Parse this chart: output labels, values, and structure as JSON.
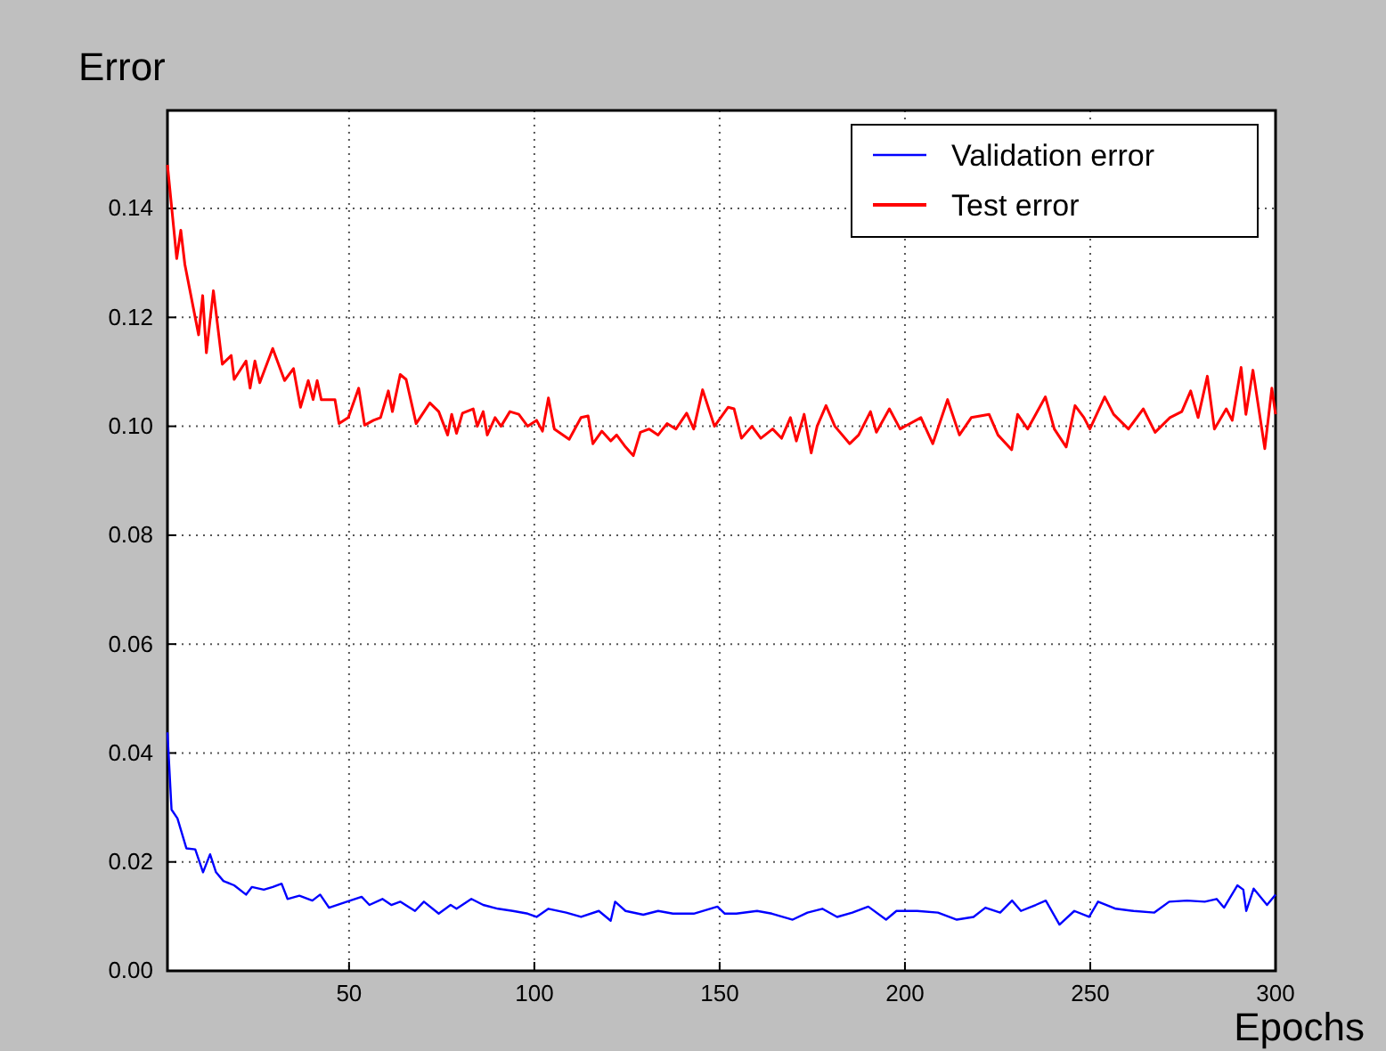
{
  "chart_data": {
    "type": "line",
    "xlabel": "Epochs",
    "ylabel": "Error",
    "xlim": [
      1,
      300
    ],
    "xticks": [
      50,
      100,
      150,
      200,
      250,
      300
    ],
    "ylim": [
      0,
      0.158
    ],
    "yticks": [
      {
        "value": 0,
        "label": "0.00"
      },
      {
        "value": 0.02,
        "label": "0.02"
      },
      {
        "value": 0.04,
        "label": "0.04"
      },
      {
        "value": 0.06,
        "label": "0.06"
      },
      {
        "value": 0.08,
        "label": "0.08"
      },
      {
        "value": 0.1,
        "label": "0.10"
      },
      {
        "value": 0.12,
        "label": "0.12"
      },
      {
        "value": 0.14,
        "label": "0.14"
      }
    ],
    "grid": true,
    "legend": "top right",
    "line_style": "solid",
    "marker": "none",
    "series": [
      {
        "name": "Validation error",
        "color": "#0000ff",
        "x": [
          1,
          2.1,
          3.7,
          6.1,
          8.5,
          10.6,
          12.5,
          14.1,
          16.1,
          19,
          22.2,
          23.8,
          27,
          29.4,
          31.8,
          33.4,
          36.6,
          40.1,
          42.2,
          44.6,
          49.4,
          53.4,
          55.5,
          59,
          61.4,
          63.8,
          67.8,
          70.2,
          74.2,
          77.4,
          79,
          83,
          86.2,
          90.2,
          94.2,
          98.2,
          100.6,
          103.8,
          108.6,
          112.6,
          117.4,
          120.6,
          121.8,
          124.6,
          129.4,
          133.4,
          137.4,
          143,
          149.4,
          151.4,
          154.5,
          160.1,
          164.1,
          169.7,
          173.7,
          177.7,
          181.7,
          185.8,
          190.1,
          194.9,
          197.7,
          203.3,
          208.9,
          214,
          218.5,
          221.7,
          225.7,
          228.9,
          231.3,
          235.3,
          238,
          241.7,
          245.7,
          249.7,
          252.1,
          256.9,
          261.7,
          267.3,
          271.3,
          276.1,
          280.9,
          284.1,
          286.1,
          289.7,
          291.3,
          292.1,
          294.1,
          297.7,
          300
        ],
        "values": [
          0.0438,
          0.0296,
          0.028,
          0.0225,
          0.0223,
          0.0181,
          0.0214,
          0.0181,
          0.0165,
          0.0157,
          0.014,
          0.0154,
          0.0149,
          0.0154,
          0.016,
          0.0132,
          0.0138,
          0.0129,
          0.014,
          0.0116,
          0.0127,
          0.0136,
          0.0121,
          0.0132,
          0.0121,
          0.0127,
          0.011,
          0.0127,
          0.0105,
          0.0121,
          0.0114,
          0.0132,
          0.0121,
          0.0114,
          0.011,
          0.0105,
          0.0099,
          0.0114,
          0.0107,
          0.0099,
          0.011,
          0.0092,
          0.0127,
          0.011,
          0.0103,
          0.011,
          0.0105,
          0.0105,
          0.0118,
          0.0105,
          0.0105,
          0.011,
          0.0105,
          0.0094,
          0.0107,
          0.0114,
          0.0099,
          0.0107,
          0.0118,
          0.0094,
          0.011,
          0.011,
          0.0107,
          0.0094,
          0.0099,
          0.0116,
          0.0107,
          0.0129,
          0.011,
          0.0121,
          0.0129,
          0.0085,
          0.011,
          0.0099,
          0.0127,
          0.0114,
          0.011,
          0.0107,
          0.0127,
          0.0129,
          0.0127,
          0.0132,
          0.0116,
          0.0157,
          0.0149,
          0.011,
          0.0151,
          0.0121,
          0.014
        ]
      },
      {
        "name": "Test error",
        "color": "#ff0000",
        "x": [
          1,
          3.5,
          4.6,
          5.7,
          9.4,
          10.5,
          11.5,
          13.4,
          15.8,
          18.2,
          19,
          22.2,
          23.3,
          24.6,
          25.9,
          29.4,
          32.6,
          35,
          36.9,
          39,
          40.3,
          41.4,
          42.5,
          46.2,
          47.3,
          49.8,
          52.6,
          54.2,
          56.6,
          58.5,
          60.6,
          61.7,
          63.8,
          65.4,
          68.1,
          71.8,
          74.2,
          76.6,
          77.7,
          79,
          80.6,
          83.5,
          84.6,
          86.2,
          87.3,
          89.4,
          91,
          93.4,
          95.8,
          98.2,
          100.6,
          102.2,
          103.8,
          105.4,
          109.4,
          112.6,
          114.5,
          115.8,
          118.2,
          120.6,
          122.2,
          124.6,
          126.7,
          128.6,
          131,
          133.4,
          135.8,
          138.2,
          141.1,
          143,
          145.4,
          148.6,
          152.3,
          153.9,
          155.9,
          158.7,
          161.1,
          164.3,
          166.7,
          169.1,
          170.7,
          172.8,
          174.7,
          176.3,
          178.7,
          181.1,
          185.1,
          187.5,
          190.7,
          192.3,
          195.8,
          198.7,
          204.3,
          207.5,
          211.5,
          214.7,
          217.9,
          222.7,
          225.1,
          228.8,
          230.4,
          233.1,
          237.9,
          240.3,
          243.5,
          245.9,
          248.3,
          249.9,
          253.9,
          256.3,
          260.3,
          264.3,
          267.5,
          271.5,
          274.7,
          277.1,
          279.1,
          281.6,
          283.5,
          286.7,
          288.3,
          290.7,
          292,
          293.9,
          297.1,
          299,
          300
        ],
        "values": [
          0.148,
          0.1308,
          0.136,
          0.1297,
          0.1168,
          0.124,
          0.1135,
          0.1249,
          0.1114,
          0.113,
          0.1086,
          0.112,
          0.107,
          0.112,
          0.108,
          0.1143,
          0.1084,
          0.1106,
          0.1035,
          0.1084,
          0.1049,
          0.1084,
          0.1049,
          0.1049,
          0.1005,
          0.1016,
          0.107,
          0.1002,
          0.1011,
          0.1016,
          0.1065,
          0.1027,
          0.1095,
          0.1086,
          0.1005,
          0.1043,
          0.1027,
          0.0984,
          0.1022,
          0.0987,
          0.1024,
          0.1032,
          0.1,
          0.1027,
          0.0984,
          0.1016,
          0.1,
          0.1027,
          0.1022,
          0.1,
          0.1011,
          0.0991,
          0.1052,
          0.0995,
          0.0976,
          0.1016,
          0.1019,
          0.0968,
          0.0991,
          0.0973,
          0.0984,
          0.0962,
          0.0946,
          0.0989,
          0.0995,
          0.0984,
          0.1005,
          0.0995,
          0.1024,
          0.0995,
          0.1067,
          0.1,
          0.1035,
          0.1032,
          0.0978,
          0.1,
          0.0978,
          0.0995,
          0.0978,
          0.1016,
          0.0973,
          0.1022,
          0.0951,
          0.1,
          0.1038,
          0.1,
          0.0968,
          0.0984,
          0.1027,
          0.0989,
          0.1032,
          0.0995,
          0.1016,
          0.0968,
          0.1049,
          0.0984,
          0.1016,
          0.1022,
          0.0984,
          0.0957,
          0.1022,
          0.0995,
          0.1054,
          0.0995,
          0.0962,
          0.1038,
          0.1016,
          0.0995,
          0.1054,
          0.1022,
          0.0995,
          0.1032,
          0.0989,
          0.1016,
          0.1027,
          0.1065,
          0.1016,
          0.1092,
          0.0995,
          0.1032,
          0.1011,
          0.1108,
          0.1022,
          0.1103,
          0.0959,
          0.107,
          0.1022
        ]
      }
    ]
  }
}
